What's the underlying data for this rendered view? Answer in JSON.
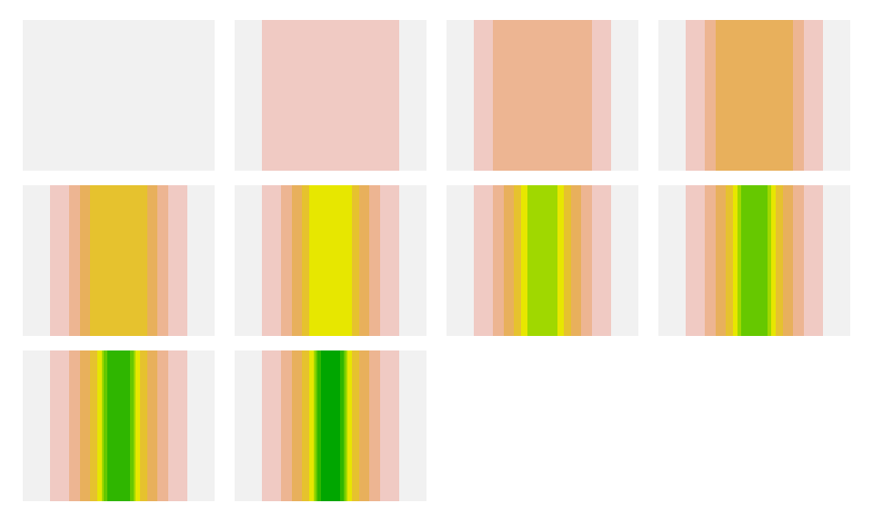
{
  "palette": {
    "background": "#f1f1f1",
    "pink": "#f0cac3",
    "salmon": "#edb592",
    "tan": "#e8b05c",
    "gold": "#e6c22e",
    "yellow": "#e7e700",
    "lime": "#a0d800",
    "bright_green": "#66c800",
    "green": "#2fb600",
    "dark_green": "#00a600"
  },
  "panels": [
    {
      "bands": []
    },
    {
      "bands": [
        {
          "name": "pink",
          "from": 0.14,
          "to": 0.86
        }
      ]
    },
    {
      "bands": [
        {
          "name": "pink",
          "from": 0.14,
          "to": 0.86
        },
        {
          "name": "salmon",
          "from": 0.24,
          "to": 0.76
        }
      ]
    },
    {
      "bands": [
        {
          "name": "pink",
          "from": 0.14,
          "to": 0.86
        },
        {
          "name": "salmon",
          "from": 0.24,
          "to": 0.76
        },
        {
          "name": "tan",
          "from": 0.3,
          "to": 0.7
        }
      ]
    },
    {
      "bands": [
        {
          "name": "pink",
          "from": 0.14,
          "to": 0.86
        },
        {
          "name": "salmon",
          "from": 0.24,
          "to": 0.76
        },
        {
          "name": "tan",
          "from": 0.3,
          "to": 0.7
        },
        {
          "name": "gold",
          "from": 0.35,
          "to": 0.65
        }
      ]
    },
    {
      "bands": [
        {
          "name": "pink",
          "from": 0.14,
          "to": 0.86
        },
        {
          "name": "salmon",
          "from": 0.24,
          "to": 0.76
        },
        {
          "name": "tan",
          "from": 0.3,
          "to": 0.7
        },
        {
          "name": "gold",
          "from": 0.35,
          "to": 0.65
        },
        {
          "name": "yellow",
          "from": 0.39,
          "to": 0.61
        }
      ]
    },
    {
      "bands": [
        {
          "name": "pink",
          "from": 0.14,
          "to": 0.86
        },
        {
          "name": "salmon",
          "from": 0.24,
          "to": 0.76
        },
        {
          "name": "tan",
          "from": 0.3,
          "to": 0.7
        },
        {
          "name": "gold",
          "from": 0.35,
          "to": 0.65
        },
        {
          "name": "yellow",
          "from": 0.39,
          "to": 0.61
        },
        {
          "name": "lime",
          "from": 0.42,
          "to": 0.58
        }
      ]
    },
    {
      "bands": [
        {
          "name": "pink",
          "from": 0.14,
          "to": 0.86
        },
        {
          "name": "salmon",
          "from": 0.24,
          "to": 0.76
        },
        {
          "name": "tan",
          "from": 0.3,
          "to": 0.7
        },
        {
          "name": "gold",
          "from": 0.35,
          "to": 0.65
        },
        {
          "name": "yellow",
          "from": 0.39,
          "to": 0.61
        },
        {
          "name": "lime",
          "from": 0.41,
          "to": 0.59
        },
        {
          "name": "bright_green",
          "from": 0.43,
          "to": 0.57
        }
      ]
    },
    {
      "bands": [
        {
          "name": "pink",
          "from": 0.14,
          "to": 0.86
        },
        {
          "name": "salmon",
          "from": 0.24,
          "to": 0.76
        },
        {
          "name": "tan",
          "from": 0.3,
          "to": 0.7
        },
        {
          "name": "gold",
          "from": 0.35,
          "to": 0.65
        },
        {
          "name": "yellow",
          "from": 0.39,
          "to": 0.61
        },
        {
          "name": "lime",
          "from": 0.41,
          "to": 0.59
        },
        {
          "name": "bright_green",
          "from": 0.42,
          "to": 0.58
        },
        {
          "name": "green",
          "from": 0.44,
          "to": 0.56
        }
      ]
    },
    {
      "bands": [
        {
          "name": "pink",
          "from": 0.14,
          "to": 0.86
        },
        {
          "name": "salmon",
          "from": 0.24,
          "to": 0.76
        },
        {
          "name": "tan",
          "from": 0.3,
          "to": 0.7
        },
        {
          "name": "gold",
          "from": 0.35,
          "to": 0.65
        },
        {
          "name": "yellow",
          "from": 0.39,
          "to": 0.61
        },
        {
          "name": "lime",
          "from": 0.41,
          "to": 0.59
        },
        {
          "name": "bright_green",
          "from": 0.42,
          "to": 0.58
        },
        {
          "name": "green",
          "from": 0.43,
          "to": 0.57
        },
        {
          "name": "dark_green",
          "from": 0.45,
          "to": 0.55
        }
      ]
    }
  ]
}
